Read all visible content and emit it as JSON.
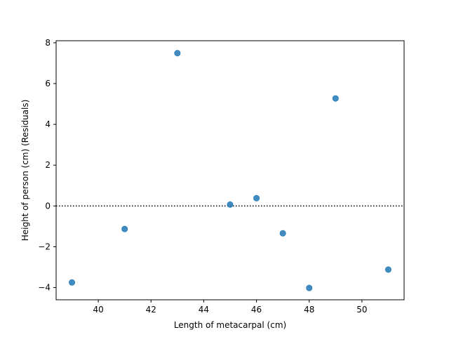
{
  "chart_data": {
    "type": "scatter",
    "title": "",
    "xlabel": "Length of metacarpal (cm)",
    "ylabel": "Height of person (cm) (Residuals)",
    "xlim": [
      38.4,
      51.6
    ],
    "ylim": [
      -4.6,
      8.1
    ],
    "xticks": [
      40,
      42,
      44,
      46,
      48,
      50
    ],
    "yticks": [
      -4,
      -2,
      0,
      2,
      4,
      6,
      8
    ],
    "grid": false,
    "reference_line": {
      "y": 0,
      "style": "dotted",
      "color": "#000000"
    },
    "marker_color": "#1f77b4",
    "series": [
      {
        "x": [
          39,
          41,
          43,
          45,
          46,
          47,
          48,
          49,
          51
        ],
        "y": [
          -3.75,
          -1.13,
          7.49,
          0.07,
          0.38,
          -1.34,
          -4.02,
          5.27,
          -3.12
        ]
      }
    ]
  }
}
